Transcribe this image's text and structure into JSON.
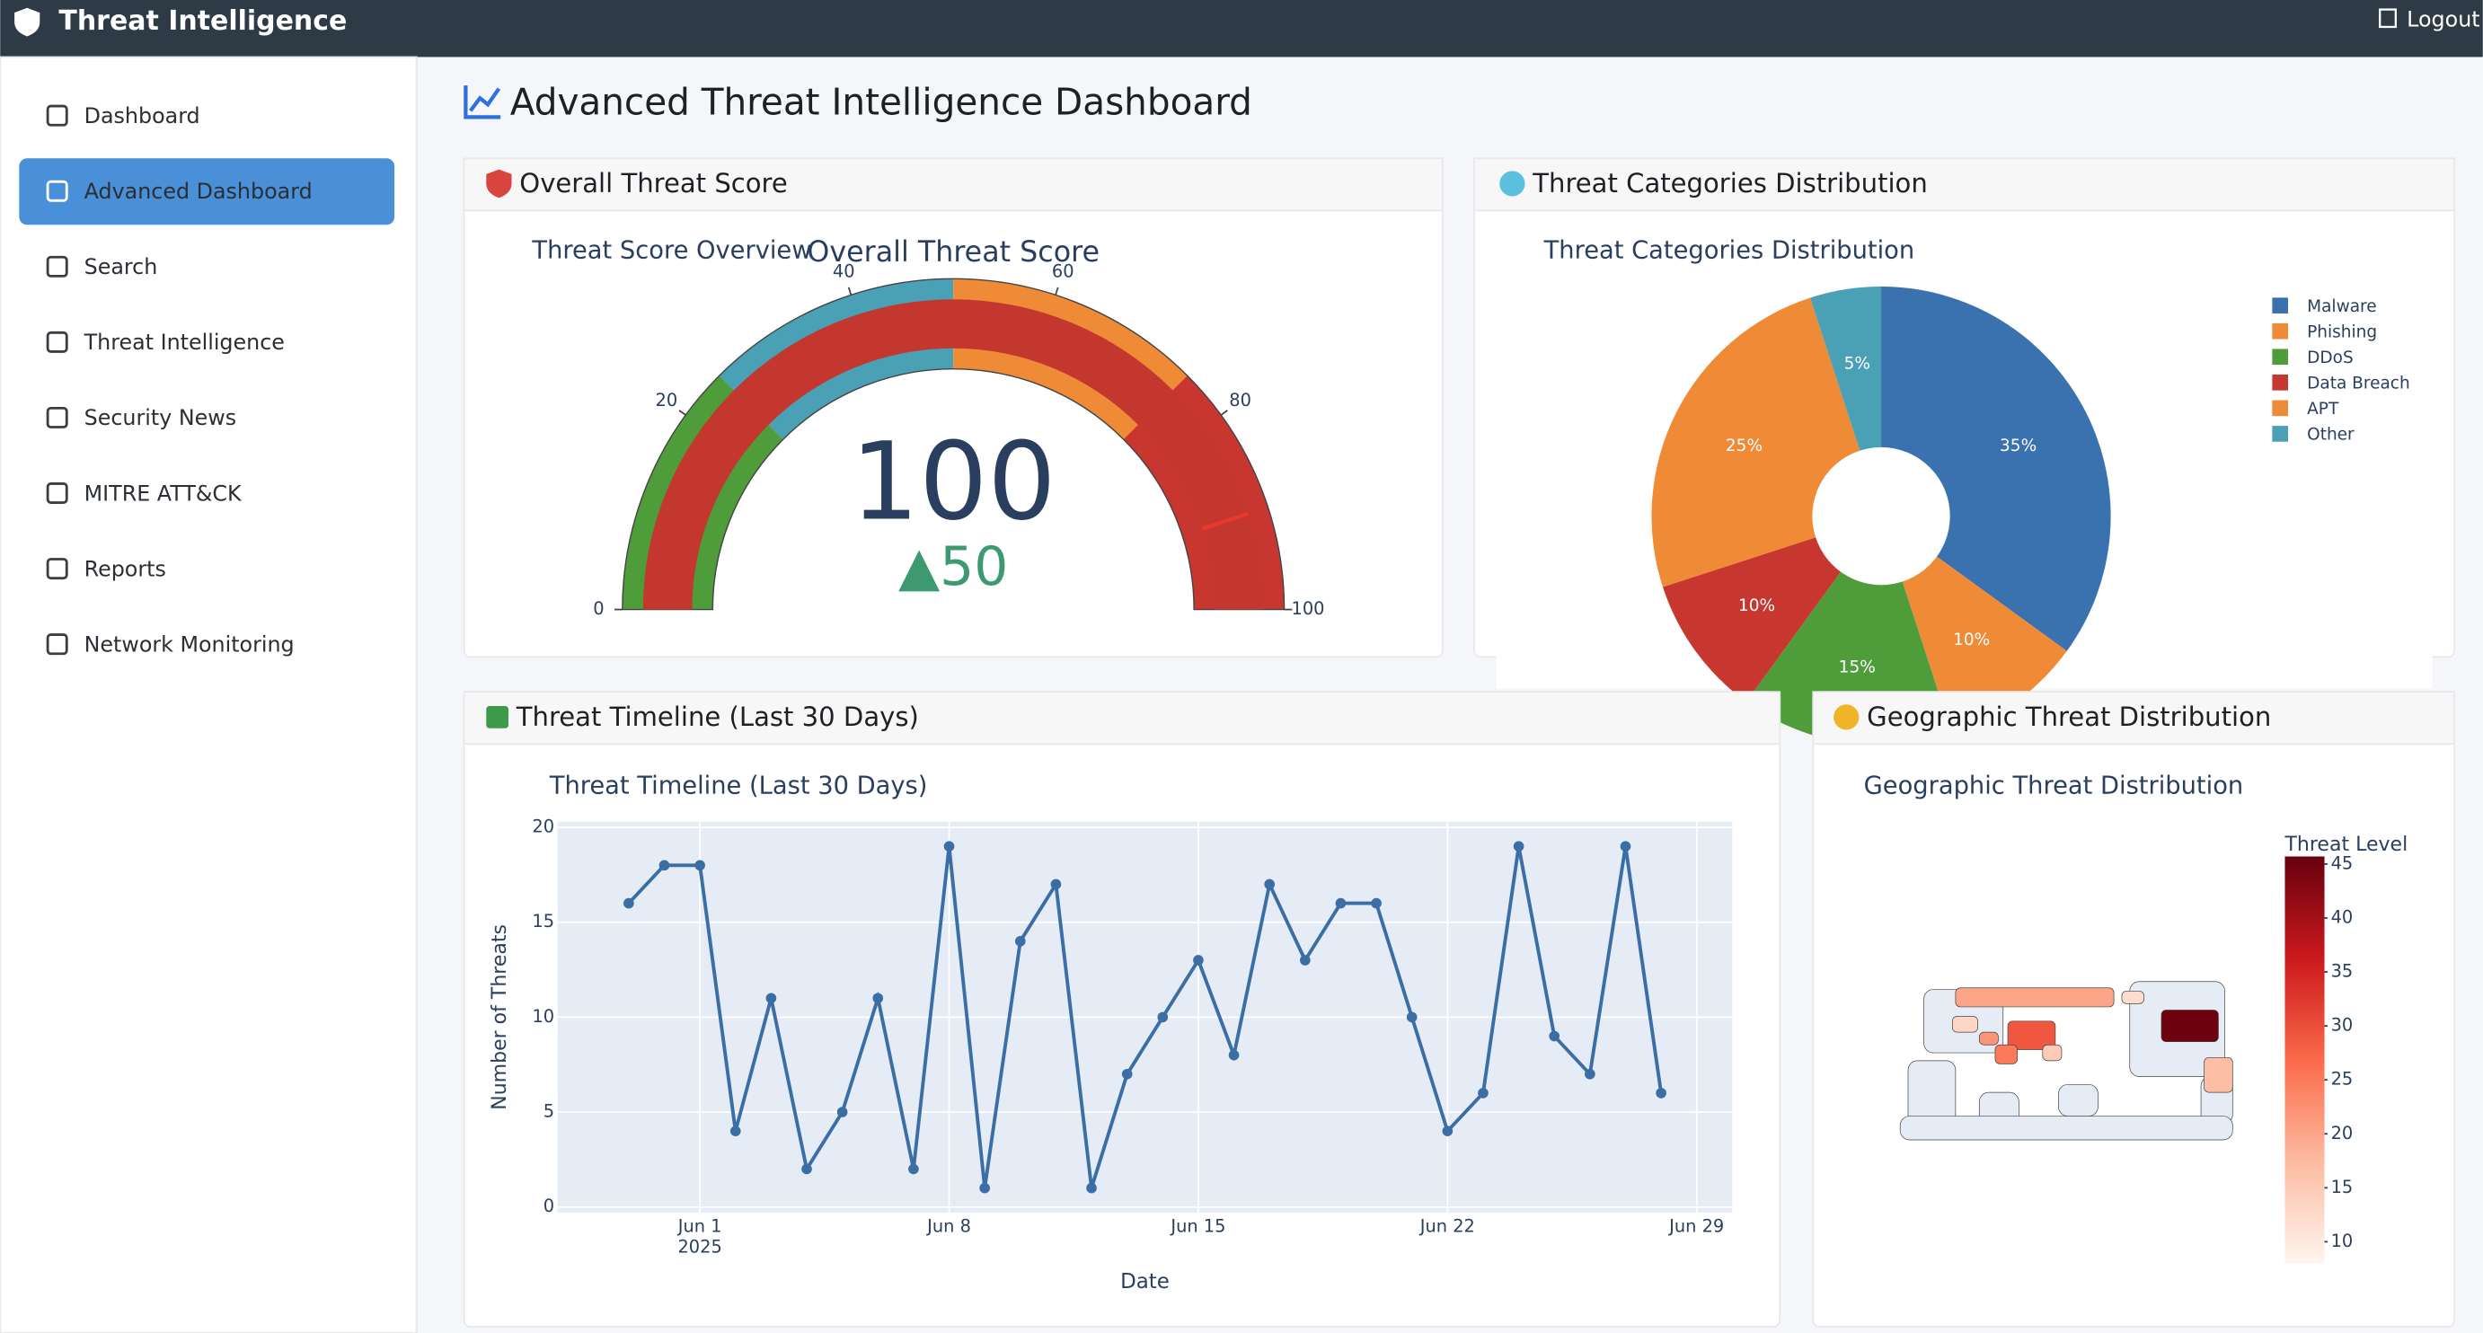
{
  "header": {
    "brand": "Threat Intelligence",
    "logout": "Logout"
  },
  "sidebar": {
    "items": [
      "Dashboard",
      "Advanced Dashboard",
      "Search",
      "Threat Intelligence",
      "Security News",
      "MITRE ATT&CK",
      "Reports",
      "Network Monitoring"
    ]
  },
  "page_title": "Advanced Threat Intelligence Dashboard",
  "cards": {
    "score": "Overall Threat Score",
    "categories": "Threat Categories Distribution",
    "timeline": "Threat Timeline (Last 30 Days)",
    "geo": "Geographic Threat Distribution"
  },
  "chart_data": [
    {
      "type": "gauge",
      "title": "Overall Threat Score",
      "subtitle": "Threat Score Overview",
      "value": 100,
      "delta": {
        "value": 50,
        "label": "▲50"
      },
      "range": [
        0,
        100
      ],
      "ticks": [
        0,
        20,
        40,
        60,
        80,
        100
      ],
      "bar_color": "#c4372e",
      "steps": [
        {
          "range": [
            0,
            25
          ],
          "color": "#4f9d3a"
        },
        {
          "range": [
            25,
            50
          ],
          "color": "#4aa0b5"
        },
        {
          "range": [
            50,
            75
          ],
          "color": "#ef8a36"
        },
        {
          "range": [
            75,
            100
          ],
          "color": "#c8372f"
        }
      ],
      "threshold": 90,
      "threshold_color": "#e8392b"
    },
    {
      "type": "pie",
      "title": "Threat Categories Distribution",
      "categories": [
        "Malware",
        "Phishing",
        "DDoS",
        "Data Breach",
        "APT",
        "Other"
      ],
      "values": [
        35,
        10,
        15,
        10,
        25,
        5
      ],
      "value_labels": [
        "35%",
        "10%",
        "15%",
        "10%",
        "25%",
        "5%"
      ],
      "colors": [
        "#3a72b0",
        "#ef8a36",
        "#4f9d3a",
        "#c8372f",
        "#ef8a36",
        "#4aa0b5"
      ],
      "hole": 0.3,
      "legend": "top-right"
    },
    {
      "type": "line",
      "title": "Threat Timeline (Last 30 Days)",
      "x": [
        "2025-05-30",
        "2025-05-31",
        "2025-06-01",
        "2025-06-02",
        "2025-06-03",
        "2025-06-04",
        "2025-06-05",
        "2025-06-06",
        "2025-06-07",
        "2025-06-08",
        "2025-06-09",
        "2025-06-10",
        "2025-06-11",
        "2025-06-12",
        "2025-06-13",
        "2025-06-14",
        "2025-06-15",
        "2025-06-16",
        "2025-06-17",
        "2025-06-18",
        "2025-06-19",
        "2025-06-20",
        "2025-06-21",
        "2025-06-22",
        "2025-06-23",
        "2025-06-24",
        "2025-06-25",
        "2025-06-26",
        "2025-06-27",
        "2025-06-28"
      ],
      "values": [
        16,
        18,
        18,
        4,
        11,
        2,
        5,
        11,
        2,
        19,
        1,
        14,
        17,
        1,
        7,
        10,
        13,
        8,
        17,
        13,
        16,
        16,
        10,
        4,
        6,
        19,
        9,
        7,
        19,
        6
      ],
      "color": "#3a6ea5",
      "xlim": [
        "2025-05-28",
        "2025-06-30"
      ],
      "xticks": [
        {
          "value": "2025-06-01",
          "label": "Jun 1"
        },
        {
          "value": "2025-06-08",
          "label": "Jun 8"
        },
        {
          "value": "2025-06-15",
          "label": "Jun 15"
        },
        {
          "value": "2025-06-22",
          "label": "Jun 22"
        },
        {
          "value": "2025-06-29",
          "label": "Jun 29"
        }
      ],
      "xtick_year": "2025",
      "ylim": [
        -0.3,
        20.3
      ],
      "yticks": [
        0,
        5,
        10,
        15,
        20
      ],
      "xlabel": "Date",
      "ylabel": "Number of Threats",
      "grid": true
    },
    {
      "type": "choropleth",
      "title": "Geographic Threat Distribution",
      "values": [
        45,
        29,
        20,
        25,
        17,
        13,
        12,
        22,
        15
      ],
      "zlim": [
        8,
        45.7
      ],
      "zticks": [
        10,
        15,
        20,
        25,
        30,
        35,
        40,
        45
      ],
      "colorbar_title": "Threat Level",
      "colorscale": [
        "#fff5f0",
        "#fcbba1",
        "#fb6a4a",
        "#cb181d",
        "#67000d"
      ]
    }
  ]
}
